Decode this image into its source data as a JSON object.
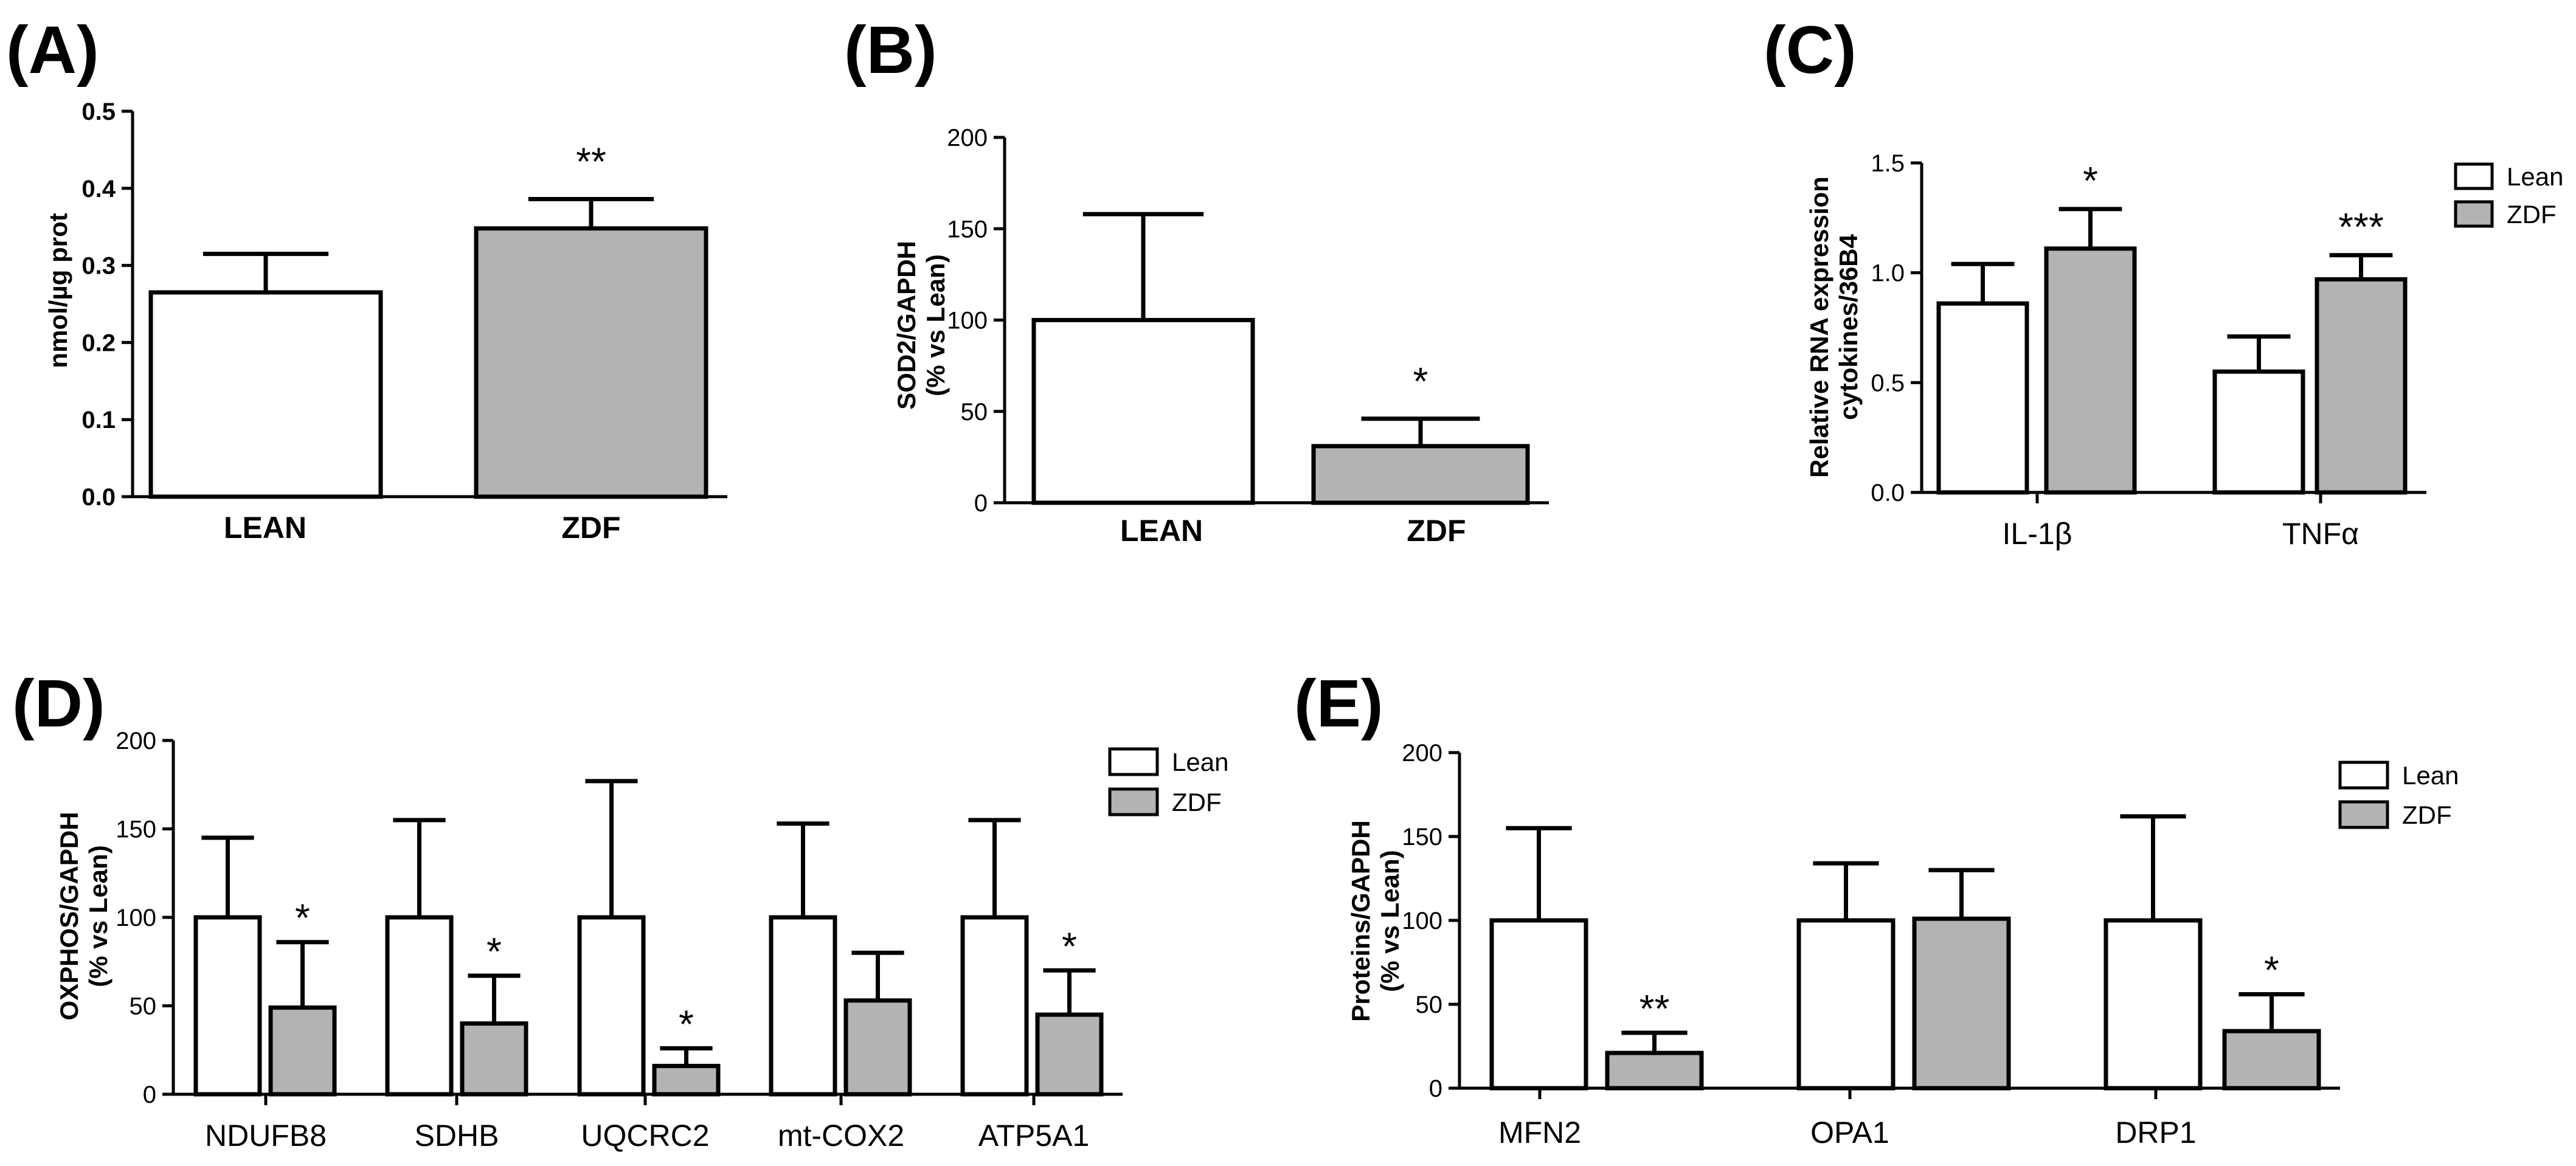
{
  "colors": {
    "lean": "#ffffff",
    "zdf": "#b3b3b3",
    "axis": "#000000"
  },
  "chart_data": [
    {
      "panel": "(A)",
      "type": "bar",
      "ylabel": "nmol/µg prot",
      "ylim": [
        0,
        0.5
      ],
      "yticks": [
        "0.0",
        "0.1",
        "0.2",
        "0.3",
        "0.4",
        "0.5"
      ],
      "categories": [
        "LEAN",
        "ZDF"
      ],
      "series": [
        {
          "name": "LEAN",
          "values": [
            0.265,
            null
          ],
          "errors": [
            0.05,
            null
          ]
        },
        {
          "name": "ZDF",
          "values": [
            null,
            0.348
          ],
          "errors": [
            null,
            0.038
          ]
        }
      ],
      "stars": [
        null,
        "**"
      ]
    },
    {
      "panel": "(B)",
      "type": "bar",
      "ylabel": "SOD2/GAPDH",
      "ylabel2": "(% vs Lean)",
      "ylim": [
        0,
        200
      ],
      "yticks": [
        "0",
        "50",
        "100",
        "150",
        "200"
      ],
      "categories": [
        "LEAN",
        "ZDF"
      ],
      "series": [
        {
          "name": "LEAN",
          "values": [
            100,
            null
          ],
          "errors": [
            58,
            null
          ]
        },
        {
          "name": "ZDF",
          "values": [
            null,
            31
          ],
          "errors": [
            null,
            15
          ]
        }
      ],
      "stars": [
        null,
        "*"
      ]
    },
    {
      "panel": "(C)",
      "type": "bar",
      "ylabel": "Relative RNA expression",
      "ylabel2": "cytokines/36B4",
      "ylim": [
        0,
        1.5
      ],
      "yticks": [
        "0.0",
        "0.5",
        "1.0",
        "1.5"
      ],
      "categories": [
        "IL-1β",
        "TNFα"
      ],
      "series": [
        {
          "name": "Lean",
          "values": [
            0.86,
            0.55
          ],
          "errors": [
            0.18,
            0.16
          ]
        },
        {
          "name": "ZDF",
          "values": [
            1.11,
            0.97
          ],
          "errors": [
            0.18,
            0.11
          ]
        }
      ],
      "stars": [
        "*",
        "***"
      ],
      "legend": [
        "Lean",
        "ZDF"
      ]
    },
    {
      "panel": "(D)",
      "type": "bar",
      "ylabel": "OXPHOS/GAPDH",
      "ylabel2": "(% vs Lean)",
      "ylim": [
        0,
        200
      ],
      "yticks": [
        "0",
        "50",
        "100",
        "150",
        "200"
      ],
      "categories": [
        "NDUFB8",
        "SDHB",
        "UQCRC2",
        "mt-COX2",
        "ATP5A1"
      ],
      "series": [
        {
          "name": "Lean",
          "values": [
            100,
            100,
            100,
            100,
            100
          ],
          "errors": [
            45,
            55,
            77,
            53,
            55
          ]
        },
        {
          "name": "ZDF",
          "values": [
            49,
            40,
            16,
            53,
            45
          ],
          "errors": [
            37,
            27,
            10,
            27,
            25
          ]
        }
      ],
      "stars": [
        "*",
        "*",
        "*",
        "",
        "*"
      ],
      "legend": [
        "Lean",
        "ZDF"
      ]
    },
    {
      "panel": "(E)",
      "type": "bar",
      "ylabel": "Proteins/GAPDH",
      "ylabel2": "(% vs Lean)",
      "ylim": [
        0,
        200
      ],
      "yticks": [
        "0",
        "50",
        "100",
        "150",
        "200"
      ],
      "categories": [
        "MFN2",
        "OPA1",
        "DRP1"
      ],
      "series": [
        {
          "name": "Lean",
          "values": [
            100,
            100,
            100
          ],
          "errors": [
            55,
            34,
            62
          ]
        },
        {
          "name": "ZDF",
          "values": [
            21,
            101,
            34
          ],
          "errors": [
            12,
            29,
            22
          ]
        }
      ],
      "stars": [
        "**",
        "",
        "*"
      ],
      "legend": [
        "Lean",
        "ZDF"
      ]
    }
  ]
}
